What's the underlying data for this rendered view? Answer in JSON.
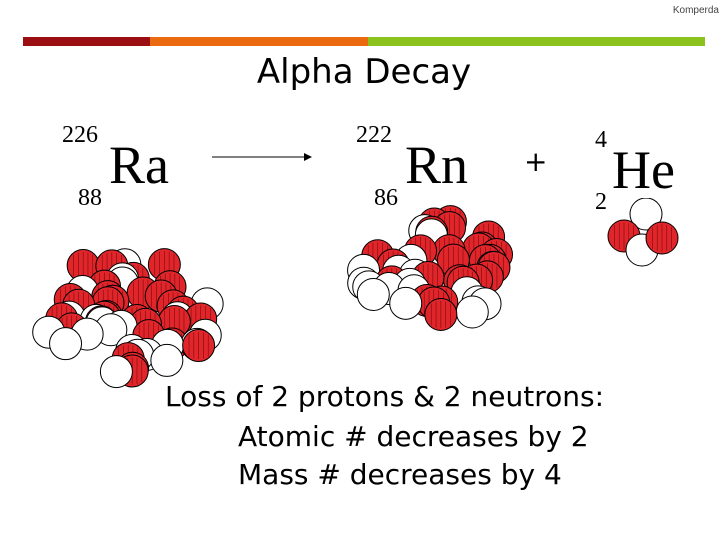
{
  "header": {
    "author": "Komperda",
    "bar_colors": [
      "#9b0f13",
      "#ec6a0f",
      "#8cc21d"
    ]
  },
  "title": "Alpha Decay",
  "equation": {
    "parent": {
      "symbol": "Ra",
      "mass": "226",
      "atomic": "88"
    },
    "daughter": {
      "symbol": "Rn",
      "mass": "222",
      "atomic": "86"
    },
    "plus": "+",
    "alpha": {
      "symbol": "He",
      "mass": "4",
      "atomic": "2"
    }
  },
  "nucleus_colors": {
    "proton": "#e0262b",
    "neutron": "#ffffff"
  },
  "explanation": {
    "line1": "Loss of 2 protons & 2 neutrons:",
    "line2": "Atomic # decreases by 2",
    "line3": "Mass # decreases by 4"
  }
}
